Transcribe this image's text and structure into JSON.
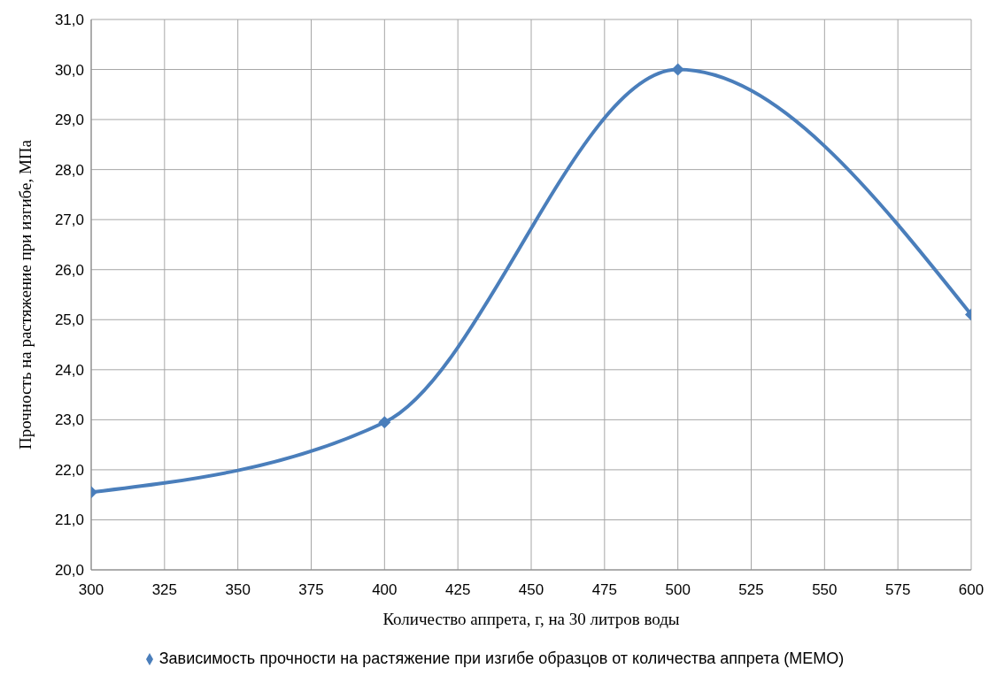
{
  "chart_data": {
    "type": "line",
    "xlabel": "Количество аппрета, г, на 30 литров воды",
    "ylabel": "Прочность на растяжение при изгибе, МПа",
    "x": [
      300,
      400,
      500,
      600
    ],
    "series": [
      {
        "name": "Зависимость прочности на растяжение при изгибе образцов от количества аппрета (МЕМО)",
        "color": "#4a7ebb",
        "values": [
          21.55,
          22.95,
          30.0,
          25.1
        ]
      }
    ],
    "xlim": [
      300,
      600
    ],
    "xticks": [
      300,
      325,
      350,
      375,
      400,
      425,
      450,
      475,
      500,
      525,
      550,
      575,
      600
    ],
    "ylim": [
      20,
      31
    ],
    "yticks": [
      {
        "value": 20,
        "label": "20,0"
      },
      {
        "value": 21,
        "label": "21,0"
      },
      {
        "value": 22,
        "label": "22,0"
      },
      {
        "value": 23,
        "label": "23,0"
      },
      {
        "value": 24,
        "label": "24,0"
      },
      {
        "value": 25,
        "label": "25,0"
      },
      {
        "value": 26,
        "label": "26,0"
      },
      {
        "value": 27,
        "label": "27,0"
      },
      {
        "value": 28,
        "label": "28,0"
      },
      {
        "value": 29,
        "label": "29,0"
      },
      {
        "value": 30,
        "label": "30,0"
      },
      {
        "value": 31,
        "label": "31,0"
      }
    ],
    "grid": true,
    "legend": "bottom",
    "marker": "diamond",
    "line_style": "solid"
  }
}
